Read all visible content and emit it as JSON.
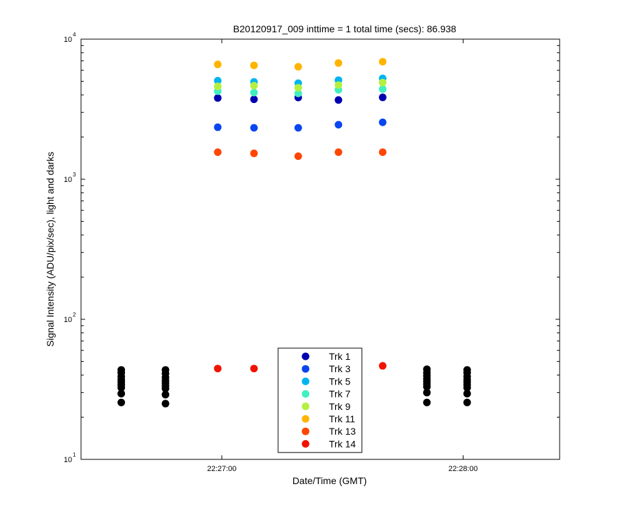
{
  "chart_data": {
    "type": "scatter",
    "title": "B20120917_009 inttime = 1 total time (secs): 86.938",
    "xlabel": "Date/Time (GMT)",
    "ylabel": "Signal Intensity (ADU/pix/sec), light and darks",
    "xscale": "time",
    "yscale": "log",
    "xlim": [
      "22:26:25",
      "22:28:24"
    ],
    "ylim": [
      10,
      10000
    ],
    "xticks": [
      {
        "value": "22:27:00",
        "label": "22:27:00"
      },
      {
        "value": "22:28:00",
        "label": "22:28:00"
      }
    ],
    "yticks": [
      {
        "value": 10,
        "base": "10",
        "exp": "1"
      },
      {
        "value": 100,
        "base": "10",
        "exp": "2"
      },
      {
        "value": 1000,
        "base": "10",
        "exp": "3"
      },
      {
        "value": 10000,
        "base": "10",
        "exp": "4"
      }
    ],
    "grid": false,
    "legend_position": "bottom-center",
    "series": [
      {
        "name": "Trk 1",
        "color": "#0000b0",
        "points": [
          [
            "22:26:59",
            3800
          ],
          [
            "22:27:08",
            3720
          ],
          [
            "22:27:19",
            3830
          ],
          [
            "22:27:29",
            3680
          ],
          [
            "22:27:40",
            3840
          ]
        ]
      },
      {
        "name": "Trk 3",
        "color": "#0a46f0",
        "points": [
          [
            "22:26:59",
            2350
          ],
          [
            "22:27:08",
            2330
          ],
          [
            "22:27:19",
            2330
          ],
          [
            "22:27:29",
            2450
          ],
          [
            "22:27:40",
            2550
          ]
        ]
      },
      {
        "name": "Trk 5",
        "color": "#00b4f0",
        "points": [
          [
            "22:26:59",
            5050
          ],
          [
            "22:27:08",
            4950
          ],
          [
            "22:27:19",
            4850
          ],
          [
            "22:27:29",
            5100
          ],
          [
            "22:27:40",
            5250
          ]
        ]
      },
      {
        "name": "Trk 7",
        "color": "#40f0c0",
        "points": [
          [
            "22:26:59",
            4250
          ],
          [
            "22:27:08",
            4150
          ],
          [
            "22:27:19",
            4100
          ],
          [
            "22:27:29",
            4350
          ],
          [
            "22:27:40",
            4400
          ]
        ]
      },
      {
        "name": "Trk 9",
        "color": "#b4f040",
        "points": [
          [
            "22:26:59",
            4600
          ],
          [
            "22:27:08",
            4650
          ],
          [
            "22:27:19",
            4500
          ],
          [
            "22:27:29",
            4700
          ],
          [
            "22:27:40",
            4900
          ]
        ]
      },
      {
        "name": "Trk 11",
        "color": "#ffb400",
        "points": [
          [
            "22:26:59",
            6600
          ],
          [
            "22:27:08",
            6500
          ],
          [
            "22:27:19",
            6350
          ],
          [
            "22:27:29",
            6750
          ],
          [
            "22:27:40",
            6900
          ]
        ]
      },
      {
        "name": "Trk 13",
        "color": "#ff4600",
        "points": [
          [
            "22:26:59",
            1560
          ],
          [
            "22:27:08",
            1530
          ],
          [
            "22:27:19",
            1460
          ],
          [
            "22:27:29",
            1560
          ],
          [
            "22:27:40",
            1560
          ]
        ]
      },
      {
        "name": "Trk 14",
        "color": "#f01400",
        "points": [
          [
            "22:26:59",
            44.5
          ],
          [
            "22:27:08",
            44.5
          ],
          [
            "22:27:40",
            46.5
          ]
        ]
      },
      {
        "name": "",
        "color": "#000000",
        "points": [
          [
            "22:26:35",
            25.5
          ],
          [
            "22:26:35",
            29.5
          ],
          [
            "22:26:35",
            32.5
          ],
          [
            "22:26:35",
            34.0
          ],
          [
            "22:26:35",
            35.5
          ],
          [
            "22:26:35",
            37.0
          ],
          [
            "22:26:35",
            39.0
          ],
          [
            "22:26:35",
            41.5
          ],
          [
            "22:26:35",
            43.5
          ],
          [
            "22:26:46",
            25.0
          ],
          [
            "22:26:46",
            29.0
          ],
          [
            "22:26:46",
            32.0
          ],
          [
            "22:26:46",
            33.5
          ],
          [
            "22:26:46",
            35.0
          ],
          [
            "22:26:46",
            36.5
          ],
          [
            "22:26:46",
            38.5
          ],
          [
            "22:26:46",
            41.0
          ],
          [
            "22:26:46",
            43.5
          ],
          [
            "22:27:51",
            25.5
          ],
          [
            "22:27:51",
            30.0
          ],
          [
            "22:27:51",
            33.0
          ],
          [
            "22:27:51",
            34.5
          ],
          [
            "22:27:51",
            36.0
          ],
          [
            "22:27:51",
            37.5
          ],
          [
            "22:27:51",
            39.5
          ],
          [
            "22:27:51",
            41.5
          ],
          [
            "22:27:51",
            44.0
          ],
          [
            "22:28:01",
            25.5
          ],
          [
            "22:28:01",
            29.5
          ],
          [
            "22:28:01",
            32.5
          ],
          [
            "22:28:01",
            34.0
          ],
          [
            "22:28:01",
            35.5
          ],
          [
            "22:28:01",
            37.0
          ],
          [
            "22:28:01",
            39.0
          ],
          [
            "22:28:01",
            41.5
          ],
          [
            "22:28:01",
            43.5
          ]
        ]
      }
    ]
  }
}
